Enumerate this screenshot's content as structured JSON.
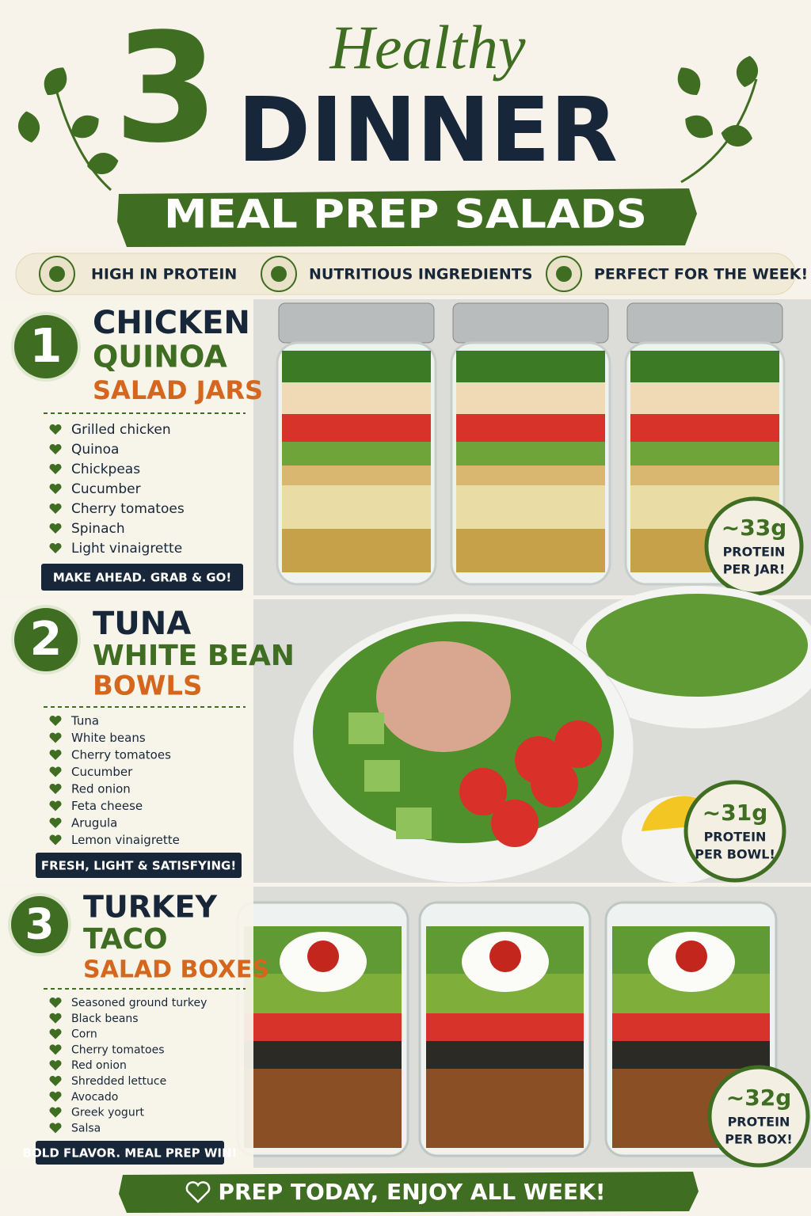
{
  "header": {
    "number": 3,
    "script": "Healthy",
    "title": "DINNER",
    "banner": "MEAL PREP SALADS"
  },
  "features": [
    "HIGH IN PROTEIN",
    "NUTRITIOUS INGREDIENTS",
    "PERFECT FOR THE WEEK!"
  ],
  "recipes": [
    {
      "number": 1,
      "title": [
        "CHICKEN",
        "QUINOA",
        "SALAD JARS"
      ],
      "ingredients": [
        "Grilled chicken",
        "Quinoa",
        "Chickpeas",
        "Cucumber",
        "Cherry tomatoes",
        "Spinach",
        "Light vinaigrette"
      ],
      "tagline": "MAKE AHEAD. GRAB & GO!",
      "badge": [
        "~33g",
        "PROTEIN",
        "PER JAR!"
      ]
    },
    {
      "number": 2,
      "title": [
        "TUNA",
        "WHITE BEAN",
        "BOWLS"
      ],
      "ingredients": [
        "Tuna",
        "White beans",
        "Cherry tomatoes",
        "Cucumber",
        "Red onion",
        "Feta cheese",
        "Arugula",
        "Lemon vinaigrette"
      ],
      "tagline": "FRESH, LIGHT & SATISFYING!",
      "badge": [
        "~31g",
        "PROTEIN",
        "PER BOWL!"
      ]
    },
    {
      "number": 3,
      "title": [
        "TURKEY",
        "TACO",
        "SALAD BOXES"
      ],
      "ingredients": [
        "Seasoned ground turkey",
        "Black beans",
        "Corn",
        "Cherry tomatoes",
        "Red onion",
        "Shredded lettuce",
        "Avocado",
        "Greek yogurt",
        "Salsa"
      ],
      "tagline": "BOLD FLAVOR. MEAL PREP WIN!",
      "badge": [
        "~32g",
        "PROTEIN",
        "PER BOX!"
      ]
    }
  ],
  "footer": "PREP TODAY, ENJOY ALL WEEK!"
}
